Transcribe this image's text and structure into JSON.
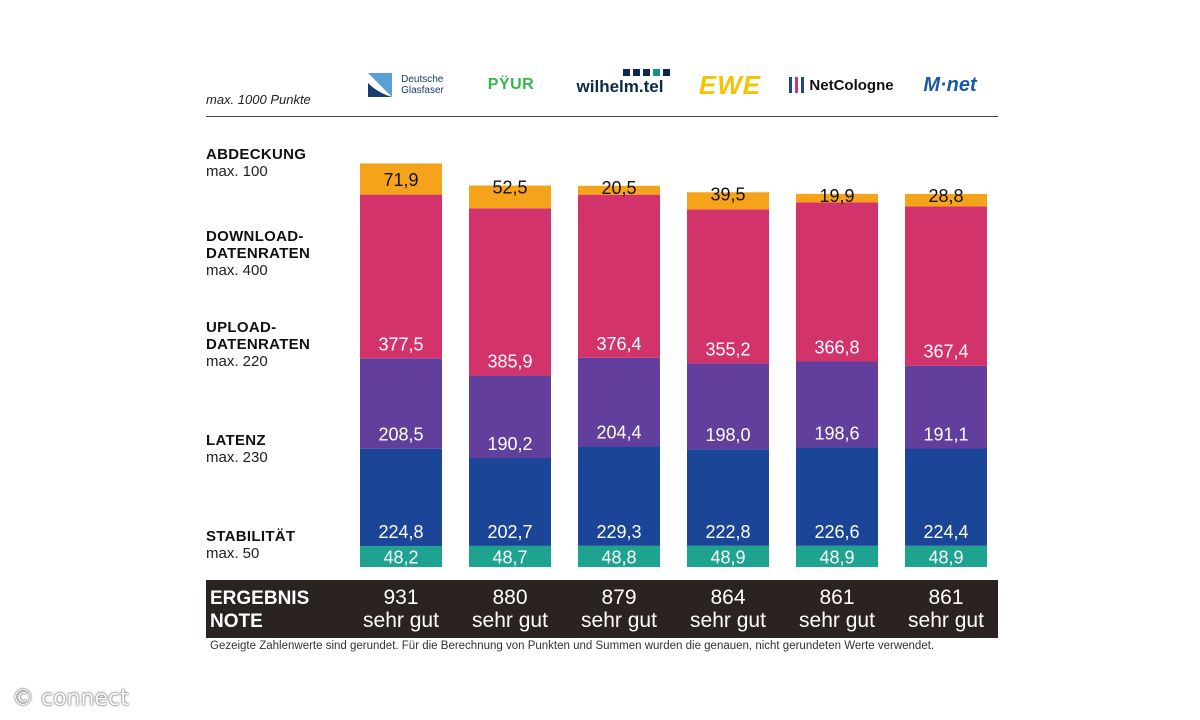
{
  "max_note": "max. 1000 Punkte",
  "providers": [
    {
      "logo_line1": "Deutsche",
      "logo_line2": "Glasfaser",
      "color": "#1a3a6e"
    },
    {
      "logo_line1": "PŸUR",
      "color": "#39b54a"
    },
    {
      "logo_line1": "wilhelm.tel",
      "color": "#0a2a4a"
    },
    {
      "logo_line1": "EWE",
      "color": "#f5c400"
    },
    {
      "logo_line1": "NetCologne",
      "color": "#111111"
    },
    {
      "logo_line1": "M·net",
      "color": "#1a58a8"
    }
  ],
  "row_labels": [
    {
      "title": "ABDECKUNG",
      "max": "max. 100"
    },
    {
      "title": "DOWNLOAD-\nDATENRATEN",
      "max": "max. 400"
    },
    {
      "title": "UPLOAD-\nDATENRATEN",
      "max": "max. 220"
    },
    {
      "title": "LATENZ",
      "max": "max. 230"
    },
    {
      "title": "STABILITÄT",
      "max": "max. 50"
    }
  ],
  "chart_data": {
    "type": "stacked-bar",
    "title": "",
    "unit": "Punkte",
    "categories": [
      "Deutsche Glasfaser",
      "PŸUR",
      "wilhelm.tel",
      "EWE",
      "NetCologne",
      "M·net"
    ],
    "series": [
      {
        "name": "Stabilität",
        "color": "#1fa391",
        "values": [
          48.2,
          48.7,
          48.8,
          48.9,
          48.9,
          48.9
        ],
        "labels": [
          "48,2",
          "48,7",
          "48,8",
          "48,9",
          "48,9",
          "48,9"
        ]
      },
      {
        "name": "Latenz",
        "color": "#1b4596",
        "values": [
          224.8,
          202.7,
          229.3,
          222.8,
          226.6,
          224.4
        ],
        "labels": [
          "224,8",
          "202,7",
          "229,3",
          "222,8",
          "226,6",
          "224,4"
        ]
      },
      {
        "name": "Upload-Datenraten",
        "color": "#623f9c",
        "values": [
          208.5,
          190.2,
          204.4,
          198.0,
          198.6,
          191.1
        ],
        "labels": [
          "208,5",
          "190,2",
          "204,4",
          "198,0",
          "198,6",
          "191,1"
        ]
      },
      {
        "name": "Download-Datenraten",
        "color": "#d3336b",
        "values": [
          377.5,
          385.9,
          376.4,
          355.2,
          366.8,
          367.4
        ],
        "labels": [
          "377,5",
          "385,9",
          "376,4",
          "355,2",
          "366,8",
          "367,4"
        ]
      },
      {
        "name": "Abdeckung",
        "color": "#f6a31c",
        "values": [
          71.9,
          52.5,
          20.5,
          39.5,
          19.9,
          28.8
        ],
        "labels": [
          "71,9",
          "52,5",
          "20,5",
          "39,5",
          "19,9",
          "28,8"
        ]
      }
    ],
    "ylim": [
      0,
      1000
    ]
  },
  "result": {
    "label_line1": "ERGEBNIS",
    "label_line2": "NOTE",
    "values": [
      {
        "score": "931",
        "grade": "sehr gut"
      },
      {
        "score": "880",
        "grade": "sehr gut"
      },
      {
        "score": "879",
        "grade": "sehr gut"
      },
      {
        "score": "864",
        "grade": "sehr gut"
      },
      {
        "score": "861",
        "grade": "sehr gut"
      },
      {
        "score": "861",
        "grade": "sehr gut"
      }
    ]
  },
  "footnote": "Gezeigte Zahlenwerte sind gerundet. Für die Berechnung von Punkten und Summen wurden die genauen, nicht gerundeten Werte verwendet.",
  "copyright": "© connect"
}
